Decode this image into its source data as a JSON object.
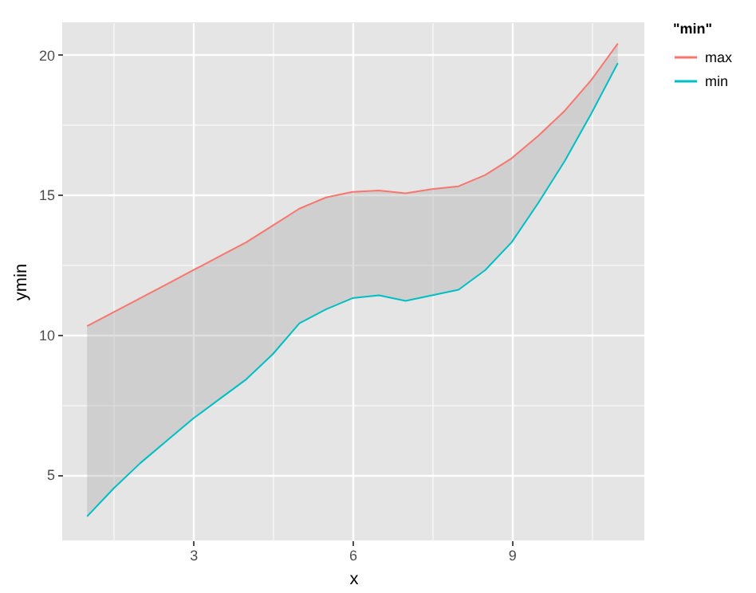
{
  "chart_data": {
    "type": "line",
    "xlabel": "x",
    "ylabel": "ymin",
    "legend_title": "\"min\"",
    "x": [
      1,
      1.5,
      2,
      2.5,
      3,
      3.5,
      4,
      4.5,
      5,
      5.5,
      6,
      6.5,
      7,
      7.5,
      8,
      8.5,
      9,
      9.5,
      10,
      10.5,
      11
    ],
    "series": [
      {
        "name": "max",
        "color": "#f8766d",
        "values": [
          10.3,
          10.8,
          11.3,
          11.8,
          12.3,
          12.8,
          13.3,
          13.9,
          14.5,
          14.9,
          15.1,
          15.15,
          15.05,
          15.2,
          15.3,
          15.7,
          16.3,
          17.1,
          18.0,
          19.1,
          20.4
        ],
        "lower": [
          3.5,
          4.5,
          5.4,
          6.2,
          7.0,
          7.7,
          8.4,
          9.3,
          10.4,
          10.9,
          11.3,
          11.4,
          11.2,
          11.4,
          11.6,
          12.3,
          13.3,
          14.7,
          16.2,
          17.9,
          19.7
        ],
        "upper": [
          10.3,
          10.8,
          11.3,
          11.8,
          12.3,
          12.8,
          13.3,
          13.9,
          14.5,
          14.9,
          15.1,
          15.15,
          15.05,
          15.2,
          15.3,
          15.7,
          16.3,
          17.1,
          18.0,
          19.1,
          20.4
        ]
      },
      {
        "name": "min",
        "color": "#00bfc4",
        "values": [
          3.5,
          4.5,
          5.4,
          6.2,
          7.0,
          7.7,
          8.4,
          9.3,
          10.4,
          10.9,
          11.3,
          11.4,
          11.2,
          11.4,
          11.6,
          12.3,
          13.3,
          14.7,
          16.2,
          17.9,
          19.7
        ]
      }
    ],
    "xlim": [
      0.53,
      11.5
    ],
    "ylim": [
      2.64,
      21.16
    ],
    "xticks": [
      {
        "value": 1.5,
        "label": null
      },
      3,
      {
        "value": 4.5,
        "label": null
      },
      6,
      {
        "value": 7.5,
        "label": null
      },
      9,
      {
        "value": 10.5,
        "label": null
      }
    ],
    "yticks": [
      5,
      {
        "value": 7.5,
        "label": null
      },
      10,
      {
        "value": 12.5,
        "label": null
      },
      15,
      {
        "value": 17.5,
        "label": null
      },
      20
    ],
    "grid": true,
    "legend": "right",
    "line_style": "solid"
  }
}
